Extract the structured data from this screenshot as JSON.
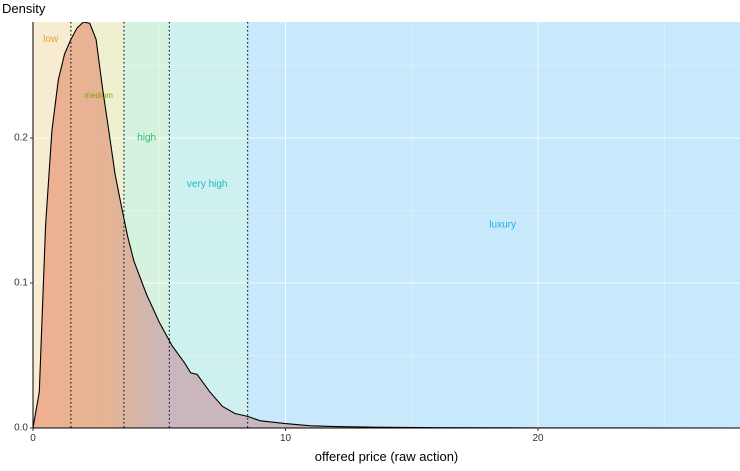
{
  "chart_data": {
    "type": "area",
    "title": "",
    "ylabel": "Density",
    "xlabel": "offered price (raw action)",
    "xlim": [
      0,
      28
    ],
    "ylim": [
      0,
      0.28
    ],
    "grid": true,
    "x_ticks": [
      0,
      10,
      20
    ],
    "x_tick_labels": [
      "0",
      "10",
      "20"
    ],
    "y_ticks": [
      0.0,
      0.1,
      0.2
    ],
    "y_tick_labels": [
      "0.0",
      "0.1",
      "0.2"
    ],
    "thresholds": [
      1.5,
      3.6,
      5.4,
      8.5
    ],
    "bands": [
      {
        "label": "low",
        "x0": 0,
        "x1": 1.5,
        "color": "#f7ecd2",
        "label_color": "#e5a12a",
        "label_x": 0.7,
        "label_y": 0.268
      },
      {
        "label": "medium",
        "x0": 1.5,
        "x1": 3.6,
        "color": "#eef0cf",
        "label_color": "#86a10c",
        "label_x": 2.6,
        "label_y": 0.229
      },
      {
        "label": "high",
        "x0": 3.6,
        "x1": 5.4,
        "color": "#d5f2df",
        "label_color": "#2cc06b",
        "label_x": 4.5,
        "label_y": 0.2
      },
      {
        "label": "very high",
        "x0": 5.4,
        "x1": 8.5,
        "color": "#cef1ef",
        "label_color": "#1fb9c8",
        "label_x": 6.9,
        "label_y": 0.168
      },
      {
        "label": "luxury",
        "x0": 8.5,
        "x1": 28,
        "color": "#c8e9fb",
        "label_color": "#1fb0e8",
        "label_x": 18.6,
        "label_y": 0.14
      }
    ],
    "series": [
      {
        "density_x": [
          0,
          0.25,
          0.5,
          0.75,
          1.0,
          1.25,
          1.5,
          1.75,
          2.0,
          2.25,
          2.5,
          2.75,
          3.0,
          3.25,
          3.5,
          3.75,
          4.0,
          4.5,
          5.0,
          5.5,
          6.0,
          6.25,
          6.5,
          7.0,
          7.5,
          8.0,
          8.5,
          9.0,
          10.0,
          11.0,
          12.0,
          14.0,
          16.0,
          20.0,
          28.0
        ],
        "density_y": [
          0,
          0.025,
          0.14,
          0.205,
          0.24,
          0.258,
          0.268,
          0.276,
          0.28,
          0.279,
          0.268,
          0.235,
          0.205,
          0.175,
          0.153,
          0.132,
          0.115,
          0.092,
          0.073,
          0.057,
          0.045,
          0.038,
          0.037,
          0.025,
          0.015,
          0.01,
          0.008,
          0.005,
          0.003,
          0.0015,
          0.001,
          0.0005,
          0.0002,
          0.0001,
          0.0
        ]
      }
    ],
    "colors": {
      "fill_low": "#efa98a",
      "fill_high": "#c9b0b8",
      "outline": "#000000",
      "threshold_line": "#1a1a2e",
      "grid": "#ffffff"
    }
  }
}
